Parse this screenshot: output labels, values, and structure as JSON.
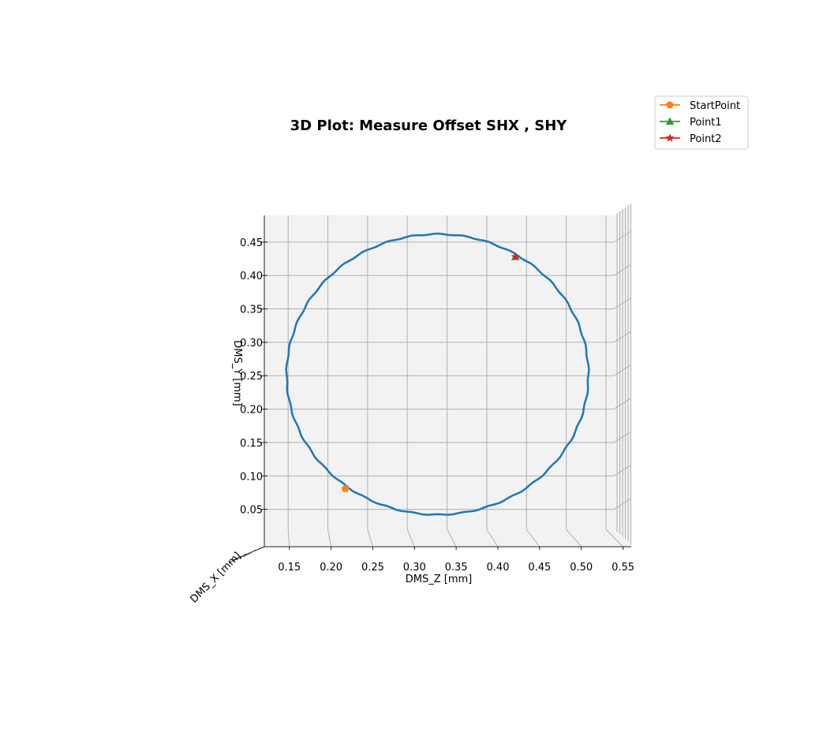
{
  "chart_data": {
    "type": "line",
    "projection": "3d",
    "title": "3D Plot: Measure Offset SHX , SHY",
    "xlabel": "DMS_Z [mm]",
    "ylabel": "DMS_Y [mm]",
    "zlabel": "DMS_X [mm]",
    "x_ticks": [
      "0.15",
      "0.20",
      "0.25",
      "0.30",
      "0.35",
      "0.40",
      "0.45",
      "0.50",
      "0.55"
    ],
    "y_ticks": [
      "0.05",
      "0.10",
      "0.15",
      "0.20",
      "0.25",
      "0.30",
      "0.35",
      "0.40",
      "0.45"
    ],
    "xlim": [
      0.12,
      0.56
    ],
    "ylim": [
      0.02,
      0.49
    ],
    "grid": true,
    "legend_position": "top-right",
    "series": [
      {
        "name": "",
        "color": "#1f77b4",
        "marker": "none",
        "shape": "circle",
        "center": [
          0.338,
          0.252
        ],
        "radius": [
          0.19,
          0.21
        ],
        "points": 180
      },
      {
        "name": "StartPoint",
        "color": "#ff7f0e",
        "marker": "pentagon",
        "x": [
          0.222
        ],
        "y": [
          0.081
        ]
      },
      {
        "name": "Point1",
        "color": "#2ca02c",
        "marker": "triangle",
        "x": [
          0.436
        ],
        "y": [
          0.428
        ]
      },
      {
        "name": "Point2",
        "color": "#d62728",
        "marker": "star",
        "x": [
          0.436
        ],
        "y": [
          0.428
        ]
      }
    ]
  }
}
